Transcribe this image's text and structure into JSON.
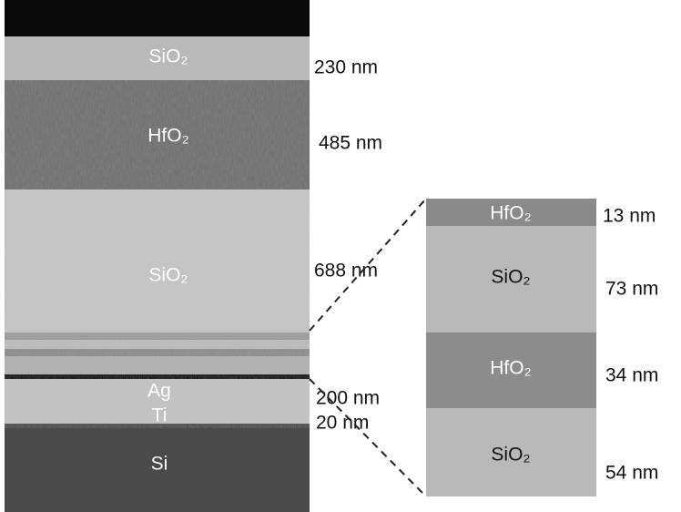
{
  "sem_image": {
    "layers": [
      {
        "label": "SiO₂",
        "thickness": "230 nm"
      },
      {
        "label": "HfO₂",
        "thickness": "485 nm"
      },
      {
        "label": "SiO₂",
        "thickness": "688 nm"
      },
      {
        "label": "Ag",
        "thickness": "200 nm"
      },
      {
        "label": "Ti",
        "thickness": "20 nm"
      },
      {
        "label": "Si"
      }
    ]
  },
  "schematic": {
    "layers": [
      {
        "label": "HfO₂",
        "thickness": "13 nm"
      },
      {
        "label": "SiO₂",
        "thickness": "73 nm"
      },
      {
        "label": "HfO₂",
        "thickness": "34 nm"
      },
      {
        "label": "SiO₂",
        "thickness": "54 nm"
      }
    ]
  }
}
